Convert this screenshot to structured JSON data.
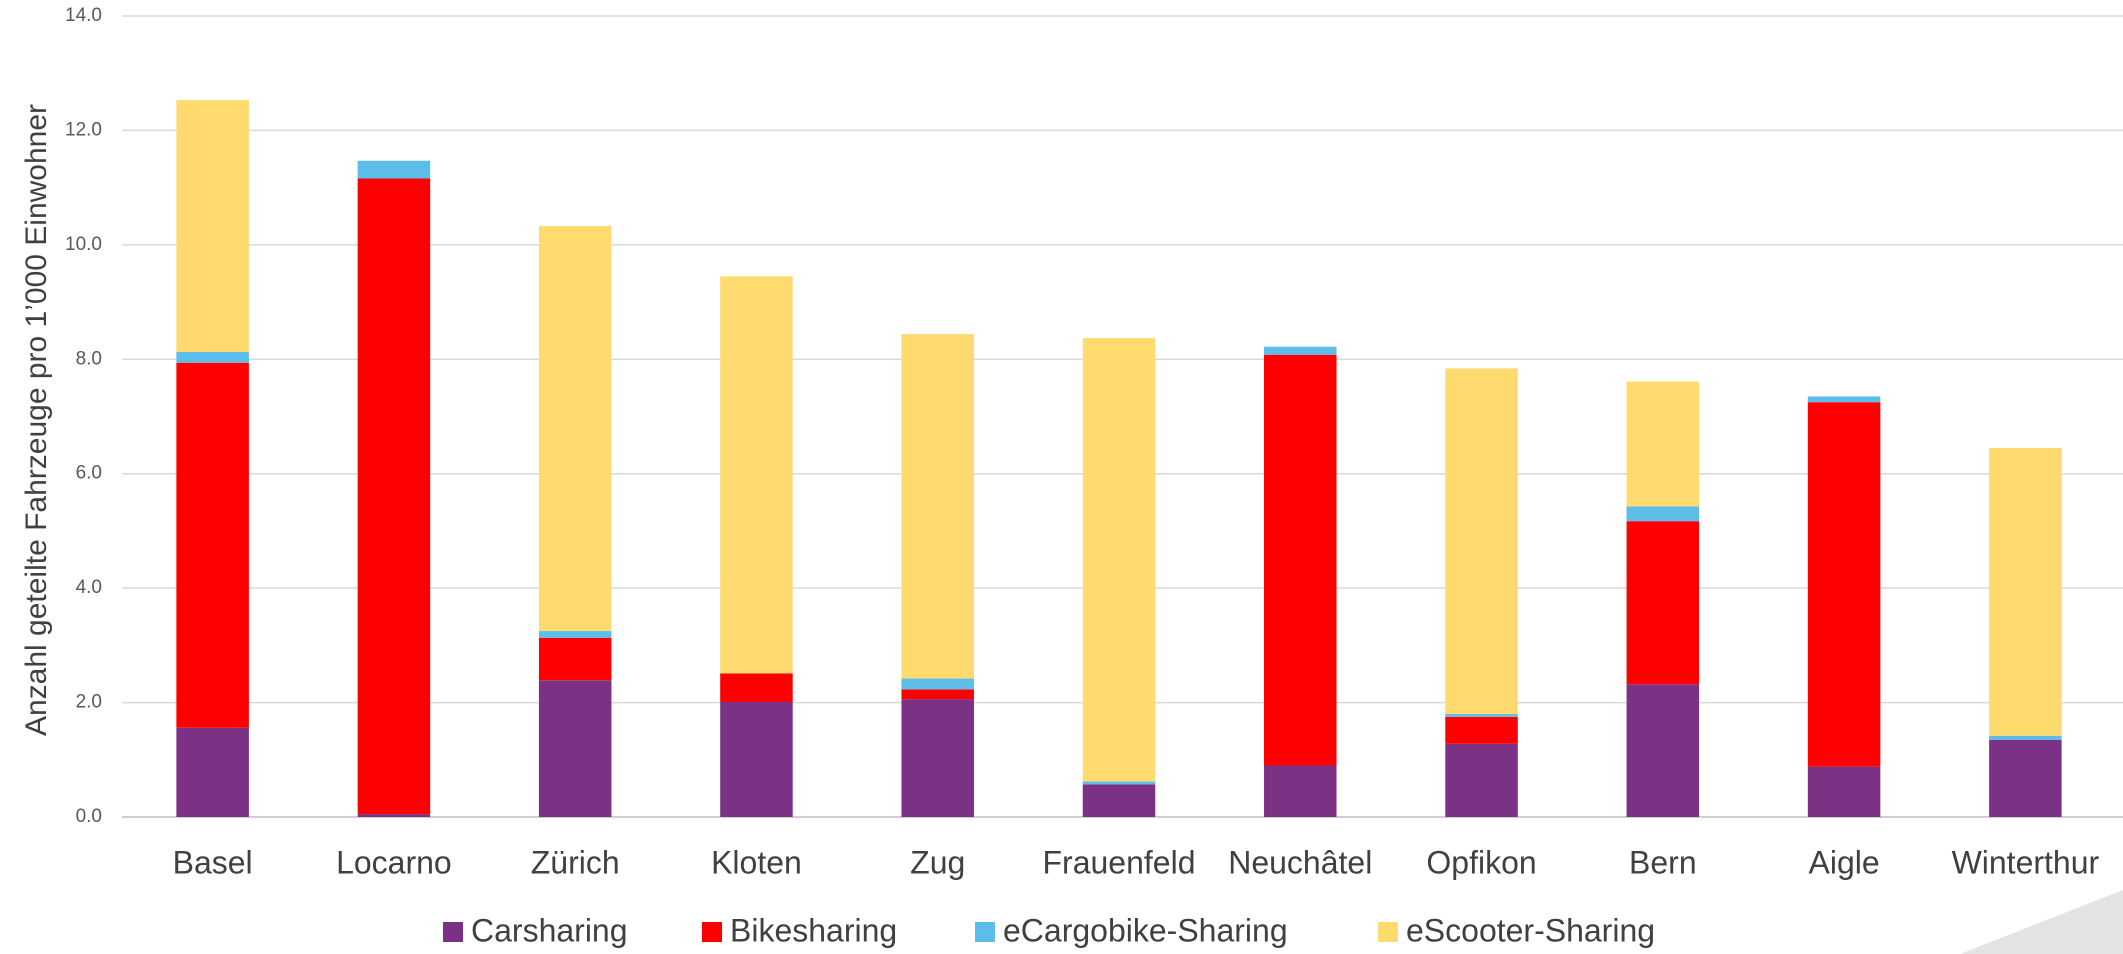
{
  "chart_data": {
    "type": "stacked_bar",
    "y_axis_label": "Anzahl geteilte Fahrzeuge pro 1’000 Einwohner",
    "categories": [
      "Basel",
      "Locarno",
      "Zürich",
      "Kloten",
      "Zug",
      "Frauenfeld",
      "Neuchâtel",
      "Opfikon",
      "Bern",
      "Aigle",
      "Winterthur"
    ],
    "series": [
      {
        "name": "Carsharing",
        "color": "#7b3285",
        "values": [
          1.56,
          0.05,
          2.39,
          2.01,
          2.06,
          0.57,
          0.9,
          1.28,
          2.32,
          0.88,
          1.35
        ]
      },
      {
        "name": "Bikesharing",
        "color": "#ff0000",
        "values": [
          6.38,
          11.11,
          0.74,
          0.5,
          0.17,
          0,
          7.18,
          0.47,
          2.85,
          6.37,
          0
        ]
      },
      {
        "name": "eCargobike-Sharing",
        "color": "#5bbde8",
        "values": [
          0.19,
          0.31,
          0.12,
          0,
          0.19,
          0.05,
          0.14,
          0.05,
          0.26,
          0.1,
          0.07
        ]
      },
      {
        "name": "eScooter-Sharing",
        "color": "#ffda6e",
        "values": [
          4.4,
          0,
          7.08,
          6.94,
          6.02,
          7.75,
          0,
          6.04,
          2.18,
          0,
          5.03
        ]
      }
    ],
    "ylim": [
      0,
      14
    ],
    "yticks": [
      {
        "value": 0,
        "label": "0.0"
      },
      {
        "value": 2,
        "label": "2.0"
      },
      {
        "value": 4,
        "label": "4.0"
      },
      {
        "value": 6,
        "label": "6.0"
      },
      {
        "value": 8,
        "label": "8.0"
      },
      {
        "value": 10,
        "label": "10.0"
      },
      {
        "value": 12,
        "label": "12.0"
      },
      {
        "value": 14,
        "label": "14.0"
      }
    ],
    "grid": true,
    "legend": "bottom"
  }
}
